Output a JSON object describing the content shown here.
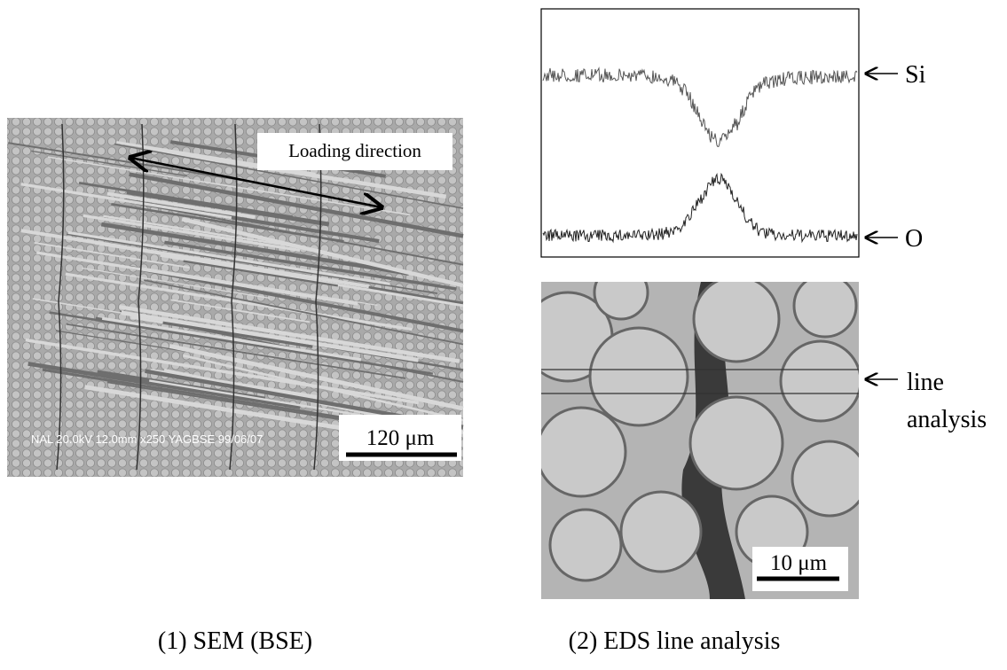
{
  "sem": {
    "annotation": "Loading direction",
    "info": "NAL 20.0kV 12.0mm x250 YAGBSE 99/06/07",
    "scale_bar": "120 μm"
  },
  "eds": {
    "profile_labels": [
      "Si",
      "O"
    ],
    "line_label": [
      "line",
      "analysis"
    ],
    "scale_bar": "10 μm"
  },
  "captions": [
    "(1) SEM (BSE)",
    "(2) EDS line analysis"
  ]
}
